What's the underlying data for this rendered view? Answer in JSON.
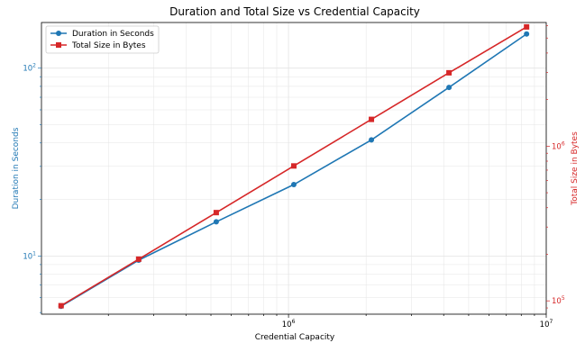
{
  "chart_data": {
    "type": "line",
    "title": "Duration and Total Size vs Credential Capacity",
    "xlabel": "Credential Capacity",
    "ylabel_left": "Duration in Seconds",
    "ylabel_right": "Total Size in Bytes",
    "x_scale": "log",
    "y_left_scale": "log",
    "y_right_scale": "log",
    "xlim": [
      110000,
      10000000
    ],
    "ylim_left": [
      4.9,
      175
    ],
    "ylim_right": [
      82000,
      6300000
    ],
    "grid": true,
    "legend_position": "top-left",
    "x_ticks": [
      {
        "value": 1000000,
        "base": "10",
        "exp": "6"
      },
      {
        "value": 10000000,
        "base": "10",
        "exp": "7"
      }
    ],
    "y_left_ticks": [
      {
        "value": 10,
        "base": "10",
        "exp": "1"
      },
      {
        "value": 100,
        "base": "10",
        "exp": "2"
      }
    ],
    "y_right_ticks": [
      {
        "value": 100000,
        "base": "10",
        "exp": "5"
      },
      {
        "value": 1000000,
        "base": "10",
        "exp": "6"
      }
    ],
    "x": [
      131072,
      262144,
      524288,
      1048576,
      2097152,
      4194304,
      8388608
    ],
    "series": [
      {
        "name": "Duration in Seconds",
        "axis": "left",
        "color": "#1f77b4",
        "marker": "circle",
        "values": [
          5.4,
          9.5,
          15.2,
          24.0,
          41.5,
          79.0,
          152.0
        ]
      },
      {
        "name": "Total Size in Bytes",
        "axis": "right",
        "color": "#d62728",
        "marker": "square",
        "values": [
          93000,
          186000,
          372000,
          745000,
          1490000,
          2980000,
          5900000
        ]
      }
    ]
  }
}
